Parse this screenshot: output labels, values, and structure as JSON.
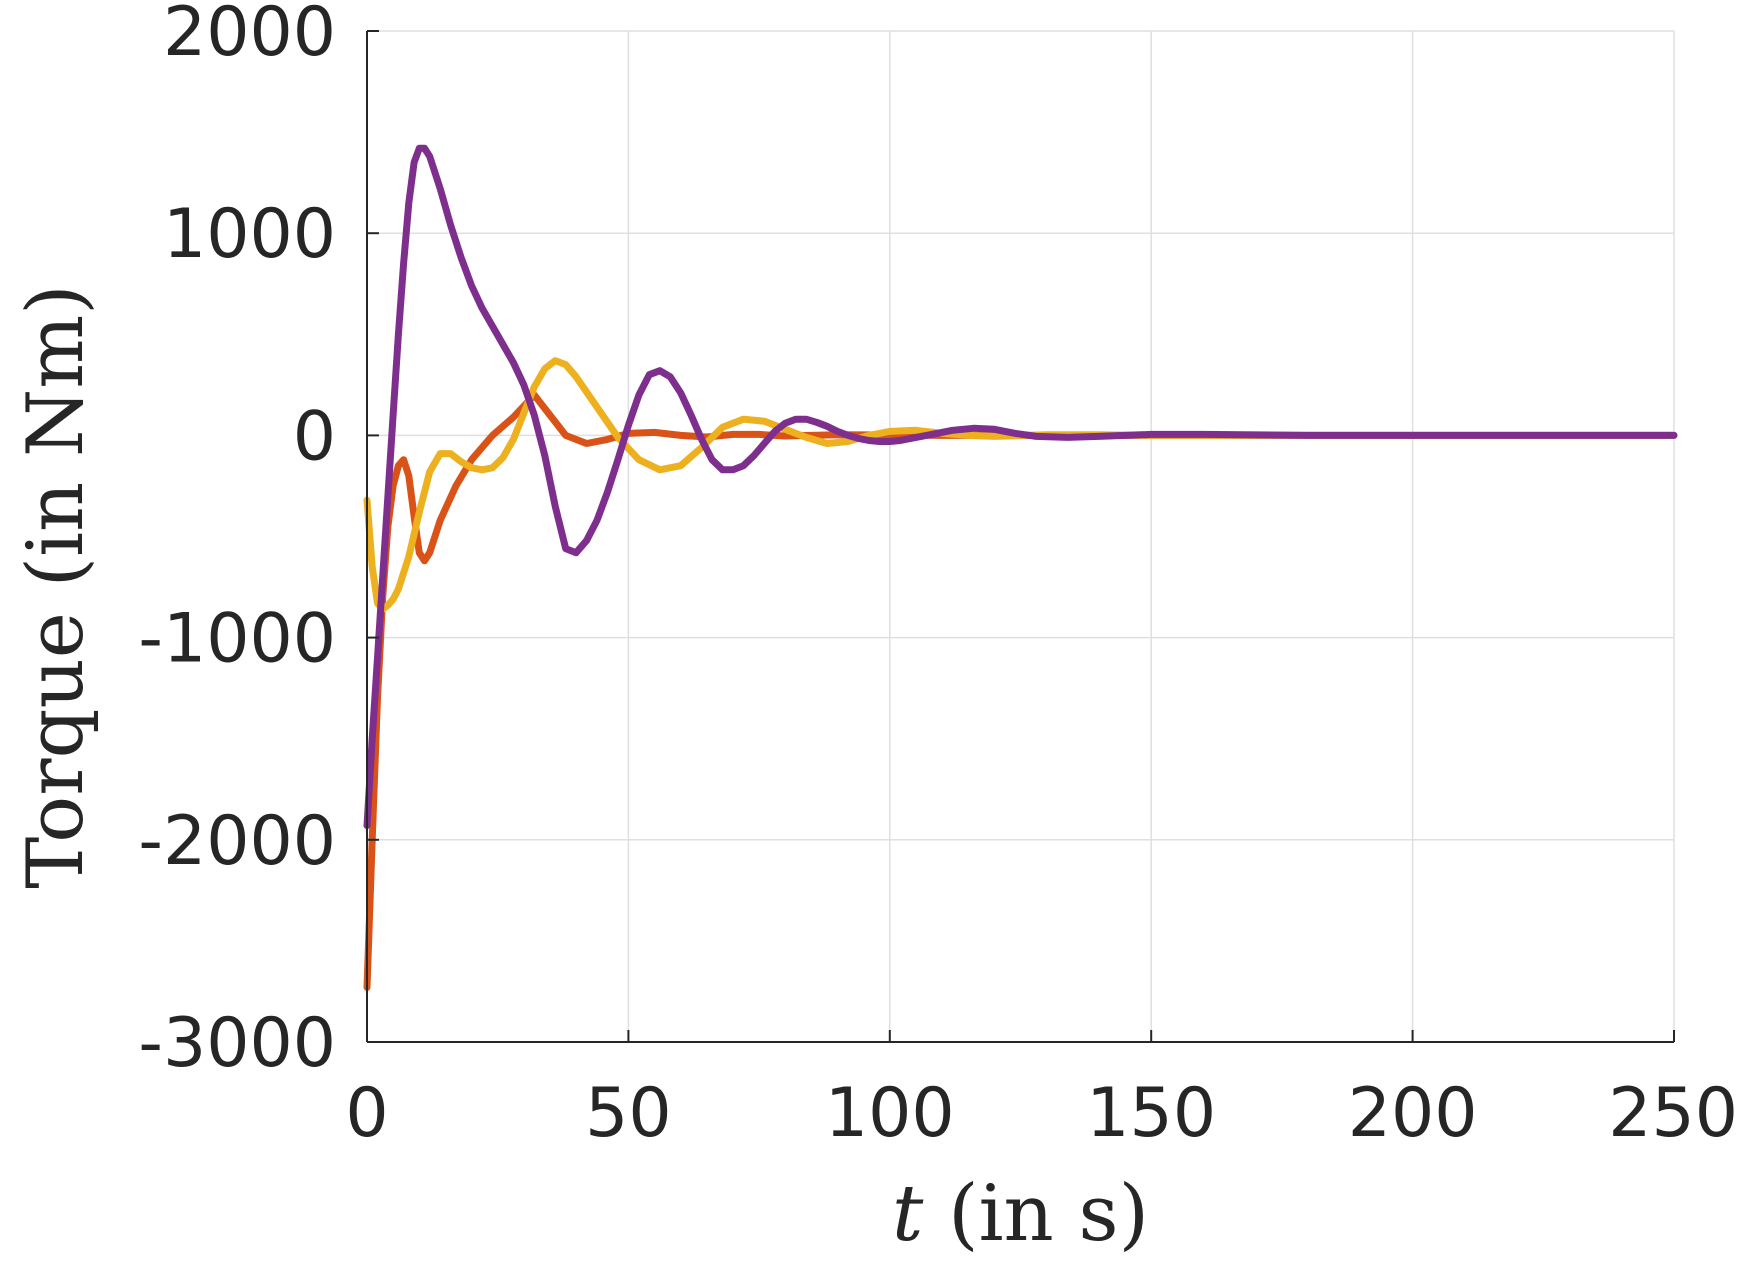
{
  "chart_data": {
    "type": "line",
    "title": "",
    "xlabel": {
      "var": "t",
      "rest": " (in s)"
    },
    "ylabel": "Torque (in Nm)",
    "xlim": [
      0,
      250
    ],
    "ylim": [
      -3000,
      2000
    ],
    "xticks": [
      0,
      50,
      100,
      150,
      200,
      250
    ],
    "yticks": [
      -3000,
      -2000,
      -1000,
      0,
      1000,
      2000
    ],
    "grid": true,
    "legend": "none",
    "series": [
      {
        "color": "#D95319",
        "x": [
          0,
          1,
          2,
          3,
          4,
          5,
          6,
          7,
          8,
          9,
          10,
          11,
          12,
          14,
          17,
          20,
          24,
          28,
          32,
          35,
          38,
          42,
          46,
          50,
          55,
          60,
          65,
          70,
          75,
          80,
          90,
          100,
          110,
          120,
          140,
          160,
          180,
          200,
          250
        ],
        "y": [
          -2730,
          -2000,
          -1300,
          -800,
          -450,
          -250,
          -150,
          -120,
          -200,
          -400,
          -580,
          -620,
          -580,
          -420,
          -250,
          -120,
          0,
          90,
          200,
          100,
          0,
          -40,
          -20,
          10,
          15,
          0,
          -8,
          5,
          5,
          -3,
          3,
          2,
          0,
          0,
          0,
          0,
          0,
          0,
          0
        ]
      },
      {
        "color": "#EDB120",
        "x": [
          0,
          1,
          2,
          3,
          4,
          5,
          6,
          8,
          10,
          12,
          14,
          16,
          18,
          20,
          22,
          24,
          26,
          28,
          30,
          32,
          34,
          36,
          38,
          40,
          44,
          48,
          52,
          56,
          60,
          64,
          68,
          72,
          76,
          80,
          84,
          88,
          92,
          96,
          100,
          105,
          110,
          115,
          120,
          130,
          140,
          150,
          160,
          180,
          200,
          250
        ],
        "y": [
          -320,
          -650,
          -830,
          -860,
          -840,
          -810,
          -760,
          -600,
          -380,
          -180,
          -90,
          -90,
          -130,
          -160,
          -170,
          -160,
          -110,
          -20,
          110,
          240,
          330,
          370,
          350,
          290,
          140,
          -10,
          -120,
          -170,
          -150,
          -60,
          40,
          80,
          70,
          30,
          -10,
          -40,
          -30,
          0,
          20,
          25,
          10,
          0,
          -5,
          3,
          3,
          0,
          0,
          0,
          0,
          0
        ]
      },
      {
        "color": "#7E2F8E",
        "x": [
          0,
          1,
          2,
          3,
          4,
          5,
          6,
          7,
          8,
          9,
          10,
          11,
          12,
          14,
          16,
          18,
          20,
          22,
          24,
          26,
          28,
          30,
          32,
          34,
          36,
          38,
          40,
          42,
          44,
          46,
          48,
          50,
          52,
          54,
          56,
          58,
          60,
          62,
          64,
          66,
          68,
          70,
          72,
          74,
          76,
          78,
          80,
          82,
          84,
          86,
          88,
          90,
          92,
          94,
          96,
          98,
          100,
          102,
          104,
          106,
          108,
          112,
          116,
          120,
          124,
          128,
          134,
          140,
          150,
          160,
          180,
          200,
          250
        ],
        "y": [
          -1930,
          -1500,
          -1100,
          -700,
          -300,
          100,
          500,
          850,
          1150,
          1350,
          1420,
          1420,
          1380,
          1220,
          1040,
          880,
          740,
          630,
          540,
          450,
          360,
          250,
          100,
          -100,
          -350,
          -560,
          -580,
          -520,
          -420,
          -280,
          -120,
          50,
          200,
          300,
          320,
          290,
          210,
          100,
          -20,
          -120,
          -170,
          -170,
          -150,
          -100,
          -40,
          20,
          60,
          80,
          80,
          65,
          45,
          20,
          0,
          -15,
          -25,
          -30,
          -30,
          -25,
          -15,
          -5,
          5,
          25,
          35,
          30,
          10,
          -5,
          -10,
          -5,
          5,
          5,
          0,
          0,
          0
        ],
        "y_scale_note_removed": null
      }
    ]
  }
}
